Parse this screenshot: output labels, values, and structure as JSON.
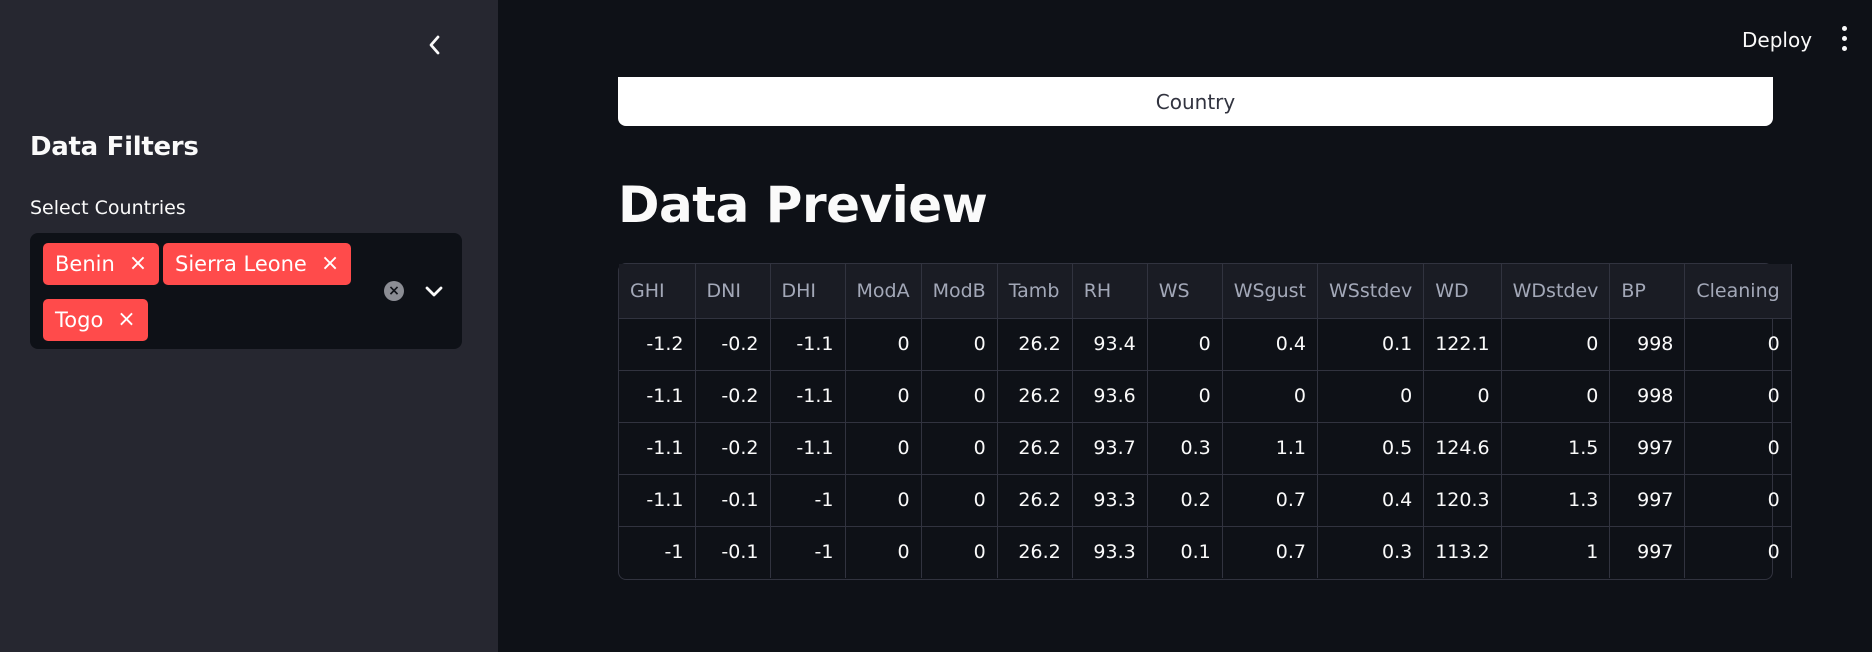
{
  "sidebar": {
    "title": "Data Filters",
    "select_label": "Select Countries",
    "selected": [
      "Benin",
      "Sierra Leone",
      "Togo"
    ],
    "remove_glyph": "×",
    "clear_glyph": "×"
  },
  "header": {
    "deploy_label": "Deploy"
  },
  "chart_card": {
    "xlabel": "Country"
  },
  "main": {
    "heading": "Data Preview"
  },
  "table": {
    "columns": [
      "GHI",
      "DNI",
      "DHI",
      "ModA",
      "ModB",
      "Tamb",
      "RH",
      "WS",
      "WSgust",
      "WSstdev",
      "WD",
      "WDstdev",
      "BP",
      "Cleaning"
    ],
    "rows": [
      [
        "-1.2",
        "-0.2",
        "-1.1",
        "0",
        "0",
        "26.2",
        "93.4",
        "0",
        "0.4",
        "0.1",
        "122.1",
        "0",
        "998",
        "0"
      ],
      [
        "-1.1",
        "-0.2",
        "-1.1",
        "0",
        "0",
        "26.2",
        "93.6",
        "0",
        "0",
        "0",
        "0",
        "0",
        "998",
        "0"
      ],
      [
        "-1.1",
        "-0.2",
        "-1.1",
        "0",
        "0",
        "26.2",
        "93.7",
        "0.3",
        "1.1",
        "0.5",
        "124.6",
        "1.5",
        "997",
        "0"
      ],
      [
        "-1.1",
        "-0.1",
        "-1",
        "0",
        "0",
        "26.2",
        "93.3",
        "0.2",
        "0.7",
        "0.4",
        "120.3",
        "1.3",
        "997",
        "0"
      ],
      [
        "-1",
        "-0.1",
        "-1",
        "0",
        "0",
        "26.2",
        "93.3",
        "0.1",
        "0.7",
        "0.3",
        "113.2",
        "1",
        "997",
        "0"
      ]
    ]
  },
  "colors": {
    "accent": "#ff4b4b",
    "sidebar_bg": "#262730",
    "main_bg": "#0e1117"
  }
}
